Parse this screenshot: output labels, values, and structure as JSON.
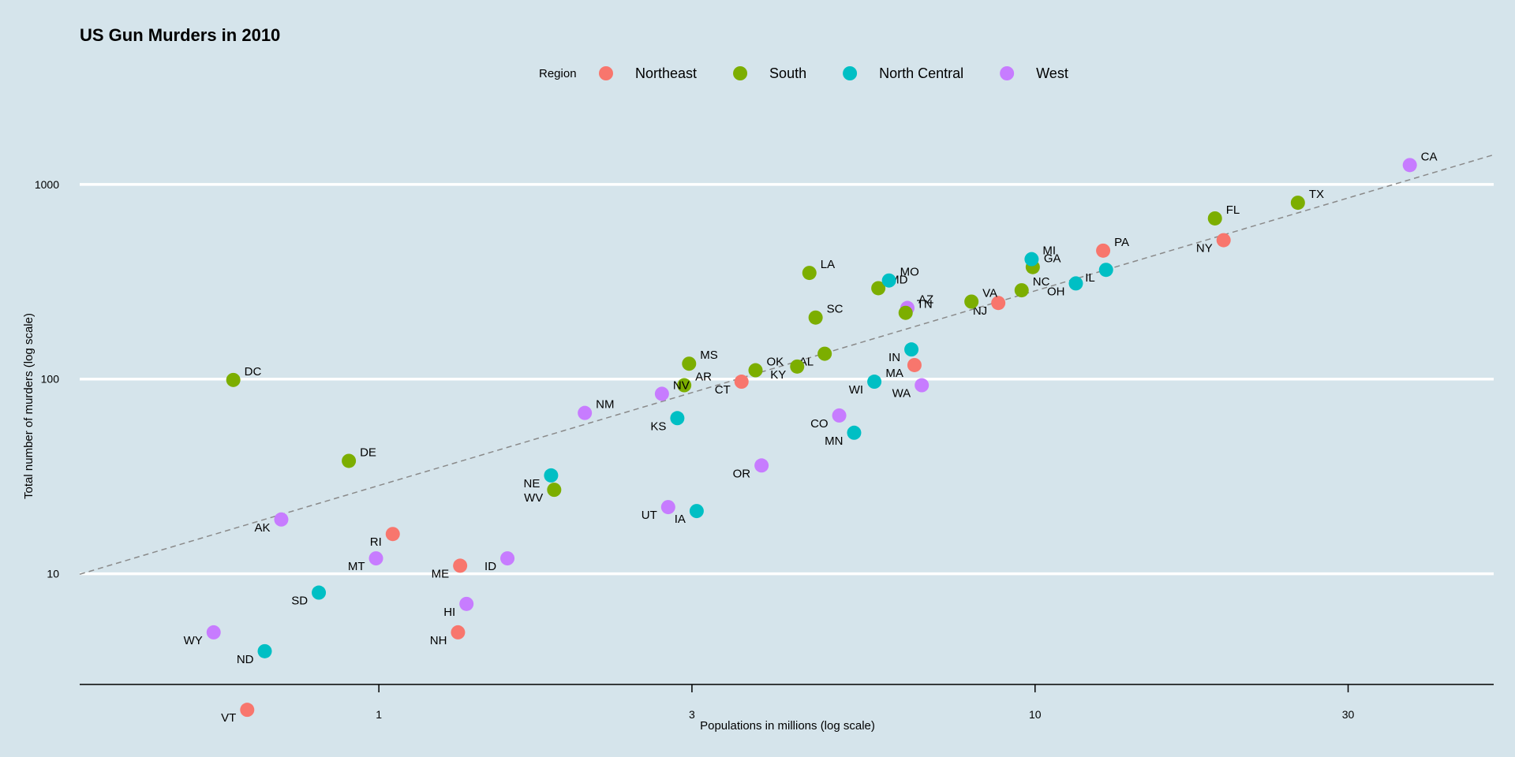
{
  "chart_data": {
    "type": "scatter",
    "title": "US Gun Murders in 2010",
    "xlabel": "Populations in millions (log scale)",
    "ylabel": "Total number of murders (log scale)",
    "x_scale": "log10",
    "y_scale": "log10",
    "xlim": [
      0.35,
      50
    ],
    "ylim": [
      2.7,
      2400
    ],
    "x_ticks": [
      1,
      3,
      10,
      30
    ],
    "y_ticks": [
      10,
      100,
      1000
    ],
    "legend": {
      "title": "Region",
      "position": "top",
      "entries": [
        {
          "name": "Northeast",
          "color": "#f8766d"
        },
        {
          "name": "South",
          "color": "#7cae00"
        },
        {
          "name": "North Central",
          "color": "#00bfc4"
        },
        {
          "name": "West",
          "color": "#c77cff"
        }
      ]
    },
    "reference_line": {
      "style": "dashed",
      "slope": 1,
      "murders_per_million": 28.4
    },
    "points": [
      {
        "abb": "AL",
        "region": "South",
        "population": 4.78,
        "murders": 135
      },
      {
        "abb": "AK",
        "region": "West",
        "population": 0.71,
        "murders": 19
      },
      {
        "abb": "AZ",
        "region": "West",
        "population": 6.39,
        "murders": 232
      },
      {
        "abb": "AR",
        "region": "South",
        "population": 2.92,
        "murders": 93
      },
      {
        "abb": "CA",
        "region": "West",
        "population": 37.25,
        "murders": 1257
      },
      {
        "abb": "CO",
        "region": "West",
        "population": 5.03,
        "murders": 65
      },
      {
        "abb": "CT",
        "region": "Northeast",
        "population": 3.57,
        "murders": 97
      },
      {
        "abb": "DE",
        "region": "South",
        "population": 0.9,
        "murders": 38
      },
      {
        "abb": "DC",
        "region": "South",
        "population": 0.6,
        "murders": 99
      },
      {
        "abb": "FL",
        "region": "South",
        "population": 18.8,
        "murders": 669
      },
      {
        "abb": "GA",
        "region": "South",
        "population": 9.92,
        "murders": 376
      },
      {
        "abb": "HI",
        "region": "West",
        "population": 1.36,
        "murders": 7
      },
      {
        "abb": "ID",
        "region": "West",
        "population": 1.57,
        "murders": 12
      },
      {
        "abb": "IL",
        "region": "North Central",
        "population": 12.83,
        "murders": 364
      },
      {
        "abb": "IN",
        "region": "North Central",
        "population": 6.48,
        "murders": 142
      },
      {
        "abb": "IA",
        "region": "North Central",
        "population": 3.05,
        "murders": 21
      },
      {
        "abb": "KS",
        "region": "North Central",
        "population": 2.85,
        "murders": 63
      },
      {
        "abb": "KY",
        "region": "South",
        "population": 4.34,
        "murders": 116
      },
      {
        "abb": "LA",
        "region": "South",
        "population": 4.53,
        "murders": 351
      },
      {
        "abb": "ME",
        "region": "Northeast",
        "population": 1.33,
        "murders": 11
      },
      {
        "abb": "MD",
        "region": "South",
        "population": 5.77,
        "murders": 293
      },
      {
        "abb": "MA",
        "region": "Northeast",
        "population": 6.55,
        "murders": 118
      },
      {
        "abb": "MI",
        "region": "North Central",
        "population": 9.88,
        "murders": 413
      },
      {
        "abb": "MN",
        "region": "North Central",
        "population": 5.3,
        "murders": 53
      },
      {
        "abb": "MS",
        "region": "South",
        "population": 2.97,
        "murders": 120
      },
      {
        "abb": "MO",
        "region": "North Central",
        "population": 5.99,
        "murders": 321
      },
      {
        "abb": "MT",
        "region": "West",
        "population": 0.99,
        "murders": 12
      },
      {
        "abb": "NE",
        "region": "North Central",
        "population": 1.83,
        "murders": 32
      },
      {
        "abb": "NV",
        "region": "West",
        "population": 2.7,
        "murders": 84
      },
      {
        "abb": "NH",
        "region": "Northeast",
        "population": 1.32,
        "murders": 5
      },
      {
        "abb": "NJ",
        "region": "Northeast",
        "population": 8.79,
        "murders": 246
      },
      {
        "abb": "NM",
        "region": "West",
        "population": 2.06,
        "murders": 67
      },
      {
        "abb": "NY",
        "region": "Northeast",
        "population": 19.38,
        "murders": 517
      },
      {
        "abb": "NC",
        "region": "South",
        "population": 9.54,
        "murders": 286
      },
      {
        "abb": "ND",
        "region": "North Central",
        "population": 0.67,
        "murders": 4
      },
      {
        "abb": "OH",
        "region": "North Central",
        "population": 11.54,
        "murders": 310
      },
      {
        "abb": "OK",
        "region": "South",
        "population": 3.75,
        "murders": 111
      },
      {
        "abb": "OR",
        "region": "West",
        "population": 3.83,
        "murders": 36
      },
      {
        "abb": "PA",
        "region": "Northeast",
        "population": 12.7,
        "murders": 457
      },
      {
        "abb": "RI",
        "region": "Northeast",
        "population": 1.05,
        "murders": 16
      },
      {
        "abb": "SC",
        "region": "South",
        "population": 4.63,
        "murders": 207
      },
      {
        "abb": "SD",
        "region": "North Central",
        "population": 0.81,
        "murders": 8
      },
      {
        "abb": "TN",
        "region": "South",
        "population": 6.35,
        "murders": 219
      },
      {
        "abb": "TX",
        "region": "South",
        "population": 25.15,
        "murders": 805
      },
      {
        "abb": "UT",
        "region": "West",
        "population": 2.76,
        "murders": 22
      },
      {
        "abb": "VT",
        "region": "Northeast",
        "population": 0.63,
        "murders": 2
      },
      {
        "abb": "VA",
        "region": "South",
        "population": 8.0,
        "murders": 250
      },
      {
        "abb": "WA",
        "region": "West",
        "population": 6.72,
        "murders": 93
      },
      {
        "abb": "WV",
        "region": "South",
        "population": 1.85,
        "murders": 27
      },
      {
        "abb": "WI",
        "region": "North Central",
        "population": 5.69,
        "murders": 97
      },
      {
        "abb": "WY",
        "region": "West",
        "population": 0.56,
        "murders": 5
      }
    ]
  }
}
